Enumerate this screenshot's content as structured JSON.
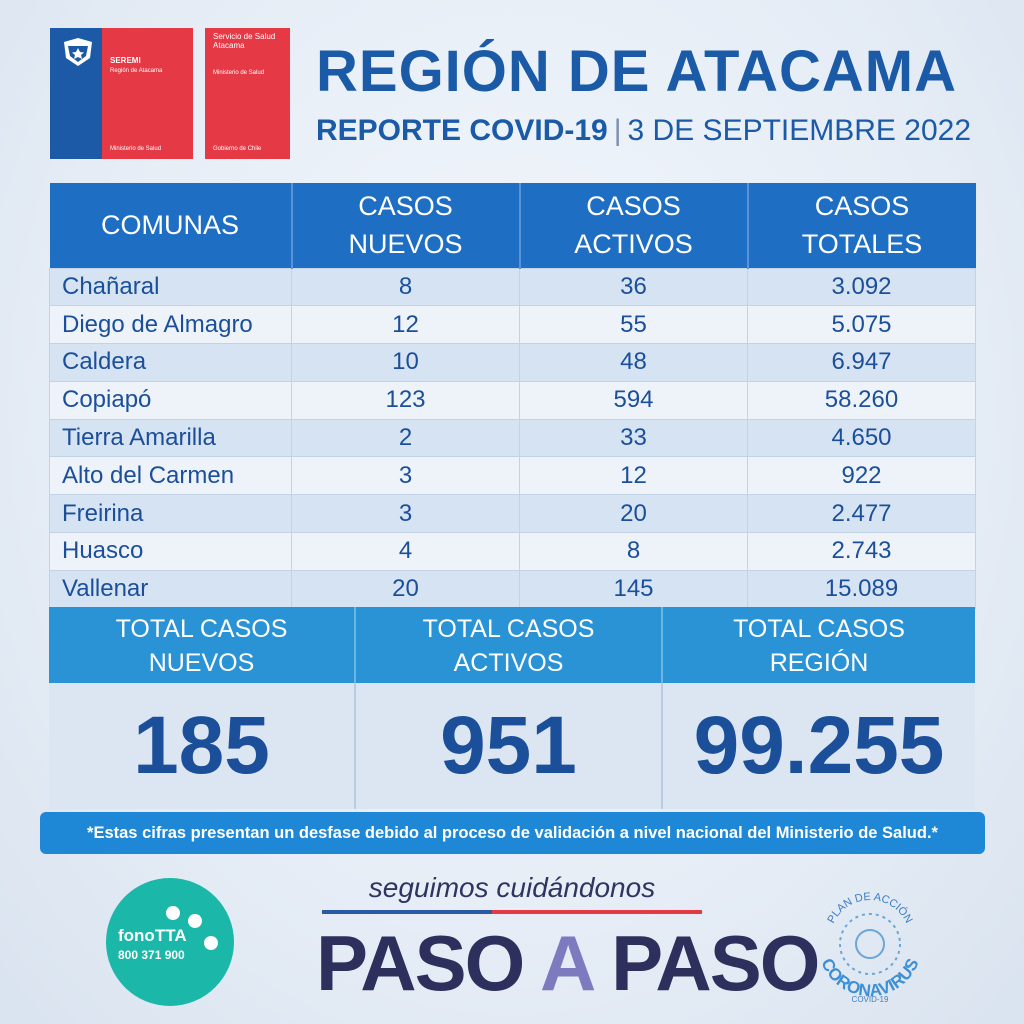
{
  "logos": {
    "seremi": {
      "line1": "SEREMI",
      "line2": "Región de Atacama",
      "footer": "Ministerio de Salud"
    },
    "servicio": {
      "line1": "Servicio de Salud Atacama",
      "line2": "Ministerio de Salud",
      "footer": "Gobierno de Chile"
    }
  },
  "header": {
    "title": "REGIÓN DE ATACAMA",
    "report": "REPORTE COVID-19",
    "separator": "|",
    "date": "3 DE SEPTIEMBRE 2022"
  },
  "table": {
    "headers": [
      "COMUNAS",
      "CASOS NUEVOS",
      "CASOS ACTIVOS",
      "CASOS TOTALES"
    ],
    "rows": [
      [
        "Chañaral",
        "8",
        "36",
        "3.092"
      ],
      [
        "Diego de Almagro",
        "12",
        "55",
        "5.075"
      ],
      [
        "Caldera",
        "10",
        "48",
        "6.947"
      ],
      [
        "Copiapó",
        "123",
        "594",
        "58.260"
      ],
      [
        "Tierra Amarilla",
        "2",
        "33",
        "4.650"
      ],
      [
        "Alto del Carmen",
        "3",
        "12",
        "922"
      ],
      [
        "Freirina",
        "3",
        "20",
        "2.477"
      ],
      [
        "Huasco",
        "4",
        "8",
        "2.743"
      ],
      [
        "Vallenar",
        "20",
        "145",
        "15.089"
      ]
    ]
  },
  "totals": [
    {
      "label": "TOTAL CASOS NUEVOS",
      "value": "185"
    },
    {
      "label": "TOTAL CASOS ACTIVOS",
      "value": "951"
    },
    {
      "label": "TOTAL CASOS REGIÓN",
      "value": "99.255"
    }
  ],
  "note": "*Estas cifras presentan un desfase debido al proceso de validación a nivel nacional del Ministerio de Salud.*",
  "footer": {
    "fono_name": "fonoTTA",
    "fono_number": "800 371 900",
    "slogan": "seguimos cuidándonos",
    "paso_1": "PASO",
    "paso_a": "A",
    "paso_2": "PASO",
    "plan_top": "PLAN DE ACCIÓN",
    "plan_main": "CORONAVIRUS",
    "plan_sub": "COVID-19"
  },
  "colors": {
    "brand_blue": "#1b5aa6",
    "header_blue": "#1e6ec3",
    "totals_blue": "#2a93d5",
    "red": "#e63946",
    "teal": "#1bb7a8"
  }
}
